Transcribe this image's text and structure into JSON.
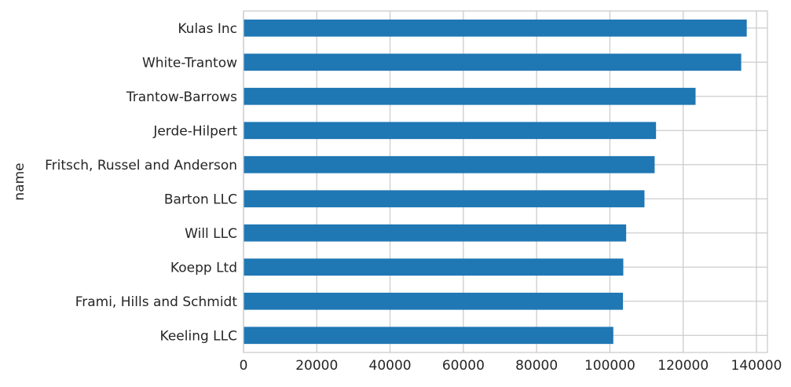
{
  "chart_data": {
    "type": "bar",
    "orientation": "horizontal",
    "categories": [
      "Kulas Inc",
      "White-Trantow",
      "Trantow-Barrows",
      "Jerde-Hilpert",
      "Fritsch, Russel and Anderson",
      "Barton LLC",
      "Will LLC",
      "Koepp Ltd",
      "Frami, Hills and Schmidt",
      "Keeling LLC"
    ],
    "values": [
      137351,
      135842,
      123381,
      112592,
      112215,
      109438,
      104438,
      103660,
      103570,
      100934
    ],
    "xlabel": "",
    "ylabel": "name",
    "xlim": [
      0,
      143000
    ],
    "xticks": [
      0,
      20000,
      40000,
      60000,
      80000,
      100000,
      120000,
      140000
    ],
    "xtick_labels": [
      "0",
      "20000",
      "40000",
      "60000",
      "80000",
      "100000",
      "120000",
      "140000"
    ],
    "bar_color": "#1f77b4",
    "grid": true,
    "legend": false
  }
}
